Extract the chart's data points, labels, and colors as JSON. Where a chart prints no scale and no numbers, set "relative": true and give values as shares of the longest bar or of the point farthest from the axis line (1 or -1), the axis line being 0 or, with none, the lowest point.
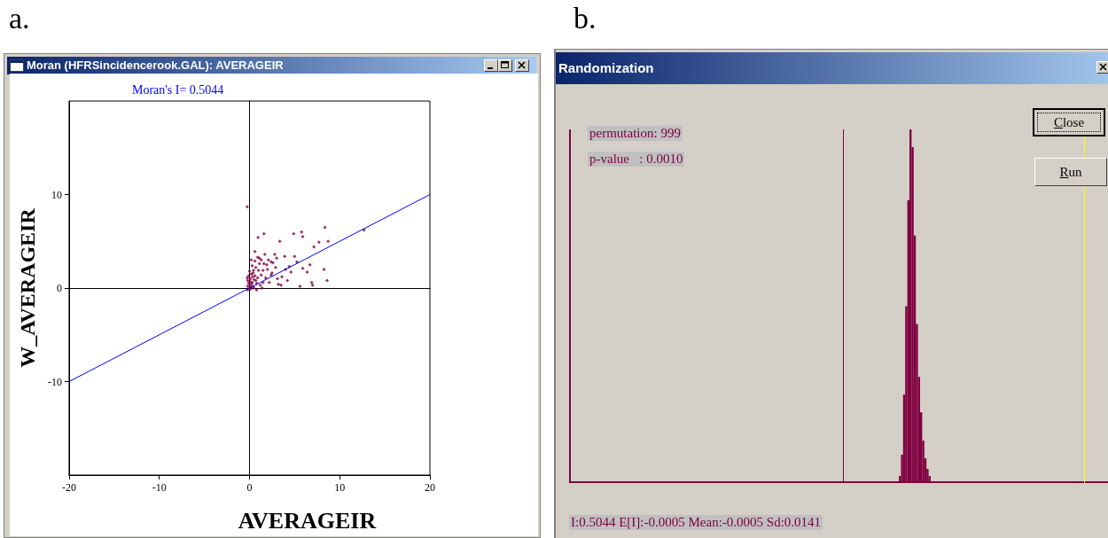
{
  "chart_data": [
    {
      "type": "scatter",
      "title": "Moran (HFRSincidencerook.GAL): AVERAGEIR",
      "subtitle": "Moran's I= 0.5044",
      "xlabel": "AVERAGEIR",
      "ylabel": "W_AVERAGEIR",
      "annotations": [
        "a."
      ],
      "xlim": [
        -20,
        20
      ],
      "ylim": [
        -20,
        20
      ],
      "xticks": [
        -20,
        -10,
        0,
        10,
        20
      ],
      "yticks": [
        -10,
        0,
        10
      ],
      "marker": "diamond",
      "series": [
        {
          "color": "#800040",
          "x": [
            -0.26,
            0.95,
            1.6,
            3.36,
            4.9,
            5.77,
            5.9,
            8.36,
            8.72,
            7.7,
            7.15,
            12.7,
            5.26,
            6.7,
            8.25,
            8.6,
            6.9,
            7.0,
            5.6,
            5.9,
            4.6,
            3.9,
            3.5,
            2.8,
            2.4,
            1.9,
            1.7,
            0.6,
            1.1,
            2.4,
            3.1,
            1.5,
            4.4,
            5.0,
            6.4,
            -0.2,
            0,
            0.1,
            0.2,
            -0.1,
            0.3,
            0.4,
            0.5,
            0.1,
            -0.2,
            0.6,
            0.2,
            0,
            0.4,
            0.8,
            0.9,
            1.0,
            0.7,
            0.3,
            -0.1,
            0.5,
            0.8,
            1.2,
            1.3,
            1.1,
            0.6,
            0.2,
            1.5,
            1.8,
            2.0,
            2.2,
            1.4,
            2.5,
            2.9,
            3.2,
            0.9,
            1.3,
            -0.2,
            0.05,
            0.25,
            0.15,
            -0.25,
            0.35,
            0.7,
            0.45,
            1.6,
            2.1,
            2.6,
            3.0,
            3.6,
            4.2,
            4.0
          ],
          "values": [
            8.7,
            5.4,
            5.8,
            5.0,
            5.8,
            6.0,
            5.5,
            6.5,
            5.0,
            4.9,
            4.4,
            6.2,
            2.8,
            2.5,
            2.0,
            0.8,
            0.6,
            0.3,
            0.2,
            2.1,
            1.7,
            3.4,
            0.3,
            3.6,
            2.8,
            2.5,
            3.6,
            3.9,
            3.2,
            1.4,
            1.0,
            0.6,
            2.3,
            3.4,
            1.7,
            -0.2,
            0,
            0.3,
            0.1,
            0.5,
            0.6,
            0.2,
            0.9,
            1.0,
            0.8,
            1.3,
            1.5,
            1.8,
            1.6,
            0.5,
            1.1,
            1.9,
            2.2,
            2.4,
            1.3,
            0,
            -0.2,
            0.3,
            1.4,
            2.6,
            2.9,
            3.0,
            1.9,
            1.1,
            2.0,
            0.6,
            0,
            1.6,
            2.2,
            0.4,
            3.3,
            3.0,
            0.2,
            0.7,
            0.5,
            -0.1,
            1.1,
            1.2,
            0.8,
            1.9,
            2.6,
            3.0,
            2.7,
            3.2,
            1.2,
            0.8,
            2.0
          ]
        },
        {
          "type": "line",
          "color": "#0000ff",
          "marker": "none",
          "x": [
            -20,
            20
          ],
          "values": [
            -10,
            10
          ]
        }
      ]
    },
    {
      "type": "bar",
      "relative": true,
      "annotations": [
        "b.",
        "permutation: 999",
        "p-value   : 0.0010",
        "I:0.5044 E[I]:-0.0005 Mean:-0.0005 Sd:0.0141",
        "Close",
        "Run",
        "Randomization"
      ],
      "color": "#800040",
      "categories": [
        null,
        null,
        null,
        null,
        null,
        null,
        null,
        null,
        null,
        null,
        null,
        null,
        null,
        null,
        null
      ],
      "values": [
        0.02,
        0.08,
        0.25,
        0.5,
        0.8,
        1.0,
        0.95,
        0.7,
        0.45,
        0.3,
        0.2,
        0.12,
        0.07,
        0.04,
        0.02
      ]
    }
  ]
}
